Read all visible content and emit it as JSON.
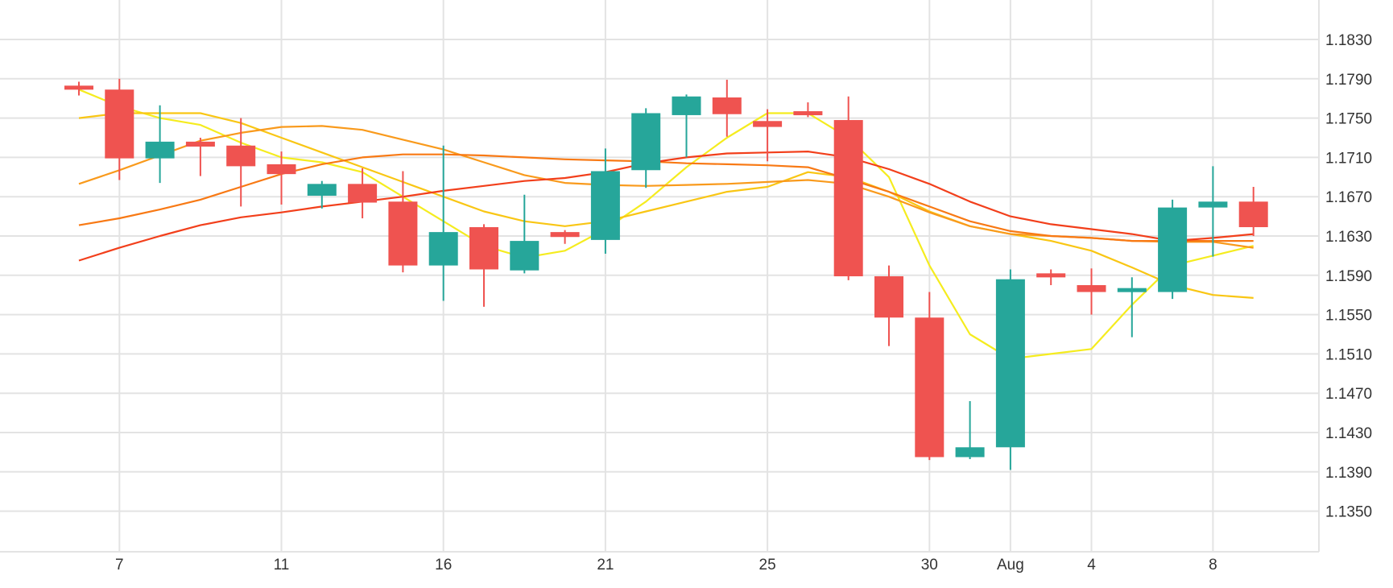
{
  "chart_data": {
    "type": "candlestick",
    "x_tick_labels": [
      "7",
      "11",
      "16",
      "21",
      "25",
      "30",
      "Aug",
      "4",
      "8"
    ],
    "x_ticks_at_candle": [
      1,
      5,
      9,
      13,
      17,
      21,
      23,
      25,
      28
    ],
    "y_tick_labels": [
      "1.1830",
      "1.1790",
      "1.1750",
      "1.1710",
      "1.1670",
      "1.1630",
      "1.1590",
      "1.1550",
      "1.1510",
      "1.1470",
      "1.1430",
      "1.1390",
      "1.1350"
    ],
    "ylim": [
      1.131,
      1.187
    ],
    "grid": true,
    "colors": {
      "up": "#26a69a",
      "down": "#ef5350",
      "grid": "#e3e3e3"
    },
    "candles": [
      {
        "o": 1.1783,
        "h": 1.1787,
        "l": 1.1773,
        "c": 1.178
      },
      {
        "o": 1.1779,
        "h": 1.179,
        "l": 1.1687,
        "c": 1.1709
      },
      {
        "o": 1.1709,
        "h": 1.1763,
        "l": 1.1684,
        "c": 1.1726
      },
      {
        "o": 1.1726,
        "h": 1.173,
        "l": 1.1691,
        "c": 1.1721
      },
      {
        "o": 1.1722,
        "h": 1.175,
        "l": 1.166,
        "c": 1.1701
      },
      {
        "o": 1.1703,
        "h": 1.1716,
        "l": 1.1662,
        "c": 1.1693
      },
      {
        "o": 1.1671,
        "h": 1.1686,
        "l": 1.1658,
        "c": 1.1683
      },
      {
        "o": 1.1683,
        "h": 1.1699,
        "l": 1.1648,
        "c": 1.1664
      },
      {
        "o": 1.1665,
        "h": 1.1696,
        "l": 1.1593,
        "c": 1.16
      },
      {
        "o": 1.16,
        "h": 1.1722,
        "l": 1.1564,
        "c": 1.1634
      },
      {
        "o": 1.1639,
        "h": 1.1642,
        "l": 1.1558,
        "c": 1.1596
      },
      {
        "o": 1.1595,
        "h": 1.1672,
        "l": 1.1592,
        "c": 1.1625
      },
      {
        "o": 1.1634,
        "h": 1.1636,
        "l": 1.1622,
        "c": 1.1629
      },
      {
        "o": 1.1626,
        "h": 1.1719,
        "l": 1.1612,
        "c": 1.1696
      },
      {
        "o": 1.1697,
        "h": 1.176,
        "l": 1.1679,
        "c": 1.1755
      },
      {
        "o": 1.1753,
        "h": 1.1774,
        "l": 1.171,
        "c": 1.1772
      },
      {
        "o": 1.1771,
        "h": 1.1789,
        "l": 1.1731,
        "c": 1.1754
      },
      {
        "o": 1.1747,
        "h": 1.1759,
        "l": 1.1706,
        "c": 1.1741
      },
      {
        "o": 1.1757,
        "h": 1.1766,
        "l": 1.1751,
        "c": 1.1754
      },
      {
        "o": 1.1748,
        "h": 1.1772,
        "l": 1.1585,
        "c": 1.1589
      },
      {
        "o": 1.1589,
        "h": 1.16,
        "l": 1.1518,
        "c": 1.1547
      },
      {
        "o": 1.1547,
        "h": 1.1573,
        "l": 1.1402,
        "c": 1.1405
      },
      {
        "o": 1.1405,
        "h": 1.1462,
        "l": 1.1403,
        "c": 1.1415
      },
      {
        "o": 1.1415,
        "h": 1.1596,
        "l": 1.1392,
        "c": 1.1586
      },
      {
        "o": 1.1592,
        "h": 1.1596,
        "l": 1.158,
        "c": 1.1589
      },
      {
        "o": 1.158,
        "h": 1.1597,
        "l": 1.155,
        "c": 1.1573
      },
      {
        "o": 1.1573,
        "h": 1.1588,
        "l": 1.1527,
        "c": 1.1577
      },
      {
        "o": 1.1573,
        "h": 1.1667,
        "l": 1.1566,
        "c": 1.1659
      },
      {
        "o": 1.1659,
        "h": 1.1701,
        "l": 1.1609,
        "c": 1.1665
      },
      {
        "o": 1.1665,
        "h": 1.168,
        "l": 1.163,
        "c": 1.1639
      }
    ],
    "series": [
      {
        "color": "#f5ec1f",
        "values": [
          1.1779,
          1.1762,
          1.175,
          1.1743,
          1.1725,
          1.171,
          1.1705,
          1.1695,
          1.167,
          1.1645,
          1.162,
          1.1608,
          1.1615,
          1.1637,
          1.1665,
          1.17,
          1.173,
          1.1755,
          1.1755,
          1.173,
          1.169,
          1.16,
          1.153,
          1.1505,
          1.151,
          1.1515,
          1.156,
          1.16,
          1.161,
          1.162
        ]
      },
      {
        "color": "#f9c614",
        "values": [
          1.175,
          1.1755,
          1.1755,
          1.1755,
          1.1745,
          1.173,
          1.1715,
          1.17,
          1.1685,
          1.167,
          1.1655,
          1.1645,
          1.164,
          1.1645,
          1.1655,
          1.1665,
          1.1675,
          1.168,
          1.1695,
          1.169,
          1.1675,
          1.1655,
          1.164,
          1.1632,
          1.1625,
          1.1615,
          1.1598,
          1.158,
          1.157,
          1.1567
        ]
      },
      {
        "color": "#f99a1c",
        "values": [
          1.1683,
          1.1697,
          1.1712,
          1.1727,
          1.1735,
          1.1741,
          1.1742,
          1.1738,
          1.1728,
          1.1718,
          1.1705,
          1.1692,
          1.1684,
          1.1682,
          1.1681,
          1.1682,
          1.1683,
          1.1685,
          1.1687,
          1.1683,
          1.167,
          1.1654,
          1.164,
          1.1632,
          1.163,
          1.1628,
          1.1625,
          1.1624,
          1.1624,
          1.1618
        ]
      },
      {
        "color": "#f87914",
        "values": [
          1.1641,
          1.1648,
          1.1657,
          1.1667,
          1.168,
          1.1693,
          1.1703,
          1.171,
          1.1713,
          1.1713,
          1.1712,
          1.171,
          1.1708,
          1.1707,
          1.1706,
          1.1704,
          1.1703,
          1.1702,
          1.17,
          1.1688,
          1.1675,
          1.166,
          1.1645,
          1.1635,
          1.163,
          1.1628,
          1.1625,
          1.1625,
          1.1625,
          1.1625
        ]
      },
      {
        "color": "#f23f1b",
        "values": [
          1.1605,
          1.1618,
          1.163,
          1.1641,
          1.1649,
          1.1654,
          1.166,
          1.1665,
          1.167,
          1.1676,
          1.1681,
          1.1686,
          1.1689,
          1.1695,
          1.1704,
          1.171,
          1.1714,
          1.1715,
          1.1716,
          1.171,
          1.1698,
          1.1683,
          1.1665,
          1.165,
          1.1642,
          1.1637,
          1.1632,
          1.1625,
          1.1628,
          1.1632
        ]
      }
    ]
  }
}
